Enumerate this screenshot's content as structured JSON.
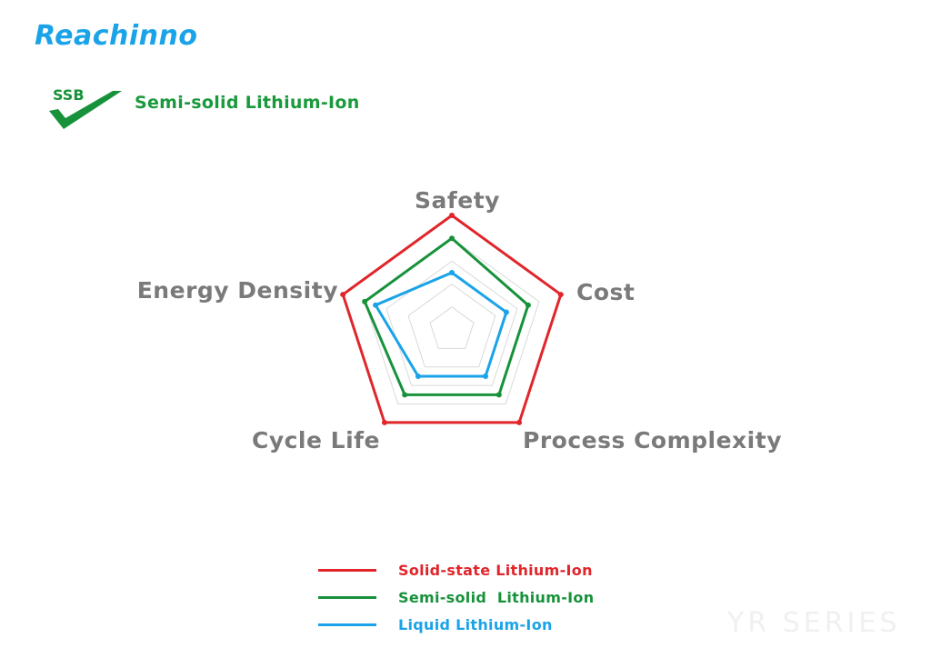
{
  "header": {
    "brand": "Reachinno",
    "brand_color": "#1aa3e8",
    "logo_text": "SSB",
    "logo_icon": "check-mark-icon",
    "subtitle": "Semi-solid Lithium-Ion",
    "subtitle_color": "#1a9a3c"
  },
  "chart_data": {
    "type": "radar",
    "axes": [
      "Safety",
      "Cost",
      "Process Complexity",
      "Cycle Life",
      "Energy Density"
    ],
    "rlim": [
      0,
      5
    ],
    "grid": true,
    "grid_levels": 5,
    "legend_placement": "bottom-center",
    "series": [
      {
        "name": "Solid-state Lithium-Ion",
        "color": "#e0262b",
        "values": [
          5,
          5,
          5,
          5,
          5
        ]
      },
      {
        "name": "Semi-solid  Lithium-Ion",
        "color": "#17923b",
        "values": [
          4,
          3.5,
          3.5,
          3.5,
          4
        ]
      },
      {
        "name": "Liquid Lithium-Ion",
        "color": "#1aa3e8",
        "values": [
          2.5,
          2.5,
          2.5,
          2.5,
          3.5
        ]
      }
    ]
  },
  "watermark": "YR SERIES"
}
